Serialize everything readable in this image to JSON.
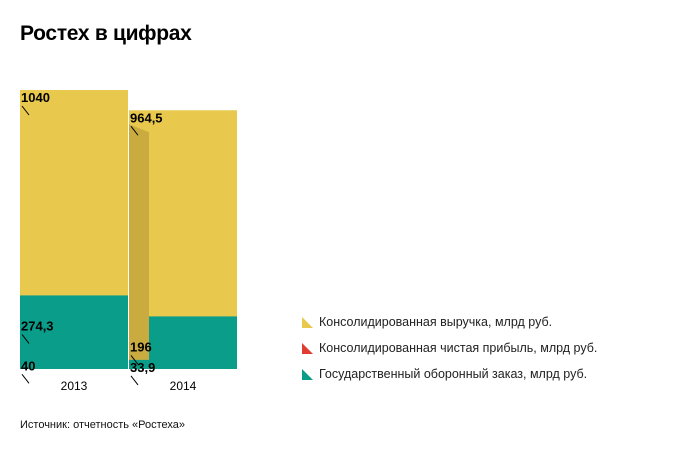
{
  "title": "Ростех в цифрах",
  "source": "Источник: отчетность «Ростеха»",
  "chart_data": {
    "type": "bar",
    "stacked": "overlay",
    "categories": [
      "2013",
      "2014"
    ],
    "series": [
      {
        "name": "Консолидированная выручка, млрд руб.",
        "values": [
          1040,
          964.5
        ],
        "labels": [
          "1040",
          "964,5"
        ],
        "color": "#e8c84d"
      },
      {
        "name": "Консолидированная чистая прибыль, млрд руб.",
        "values": [
          40,
          33.9
        ],
        "labels": [
          "40",
          "33,9"
        ],
        "color": "#e03c31"
      },
      {
        "name": "Государственный оборонный заказ, млрд руб.",
        "values": [
          274.3,
          196
        ],
        "labels": [
          "274,3",
          "196"
        ],
        "color": "#0a9e8a"
      }
    ],
    "ylim": [
      0,
      1040
    ],
    "legend_position": "right"
  },
  "colors": {
    "connector": "#c9ab3f"
  }
}
